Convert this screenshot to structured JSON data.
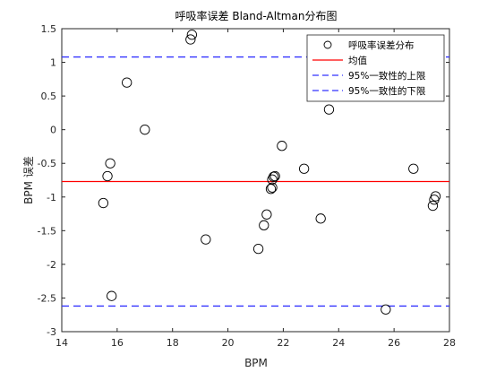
{
  "chart_data": {
    "type": "scatter",
    "title": "呼吸率误差 Bland-Altman分布图",
    "xlabel": "BPM",
    "ylabel": "BPM 误差",
    "xlim": [
      14,
      28
    ],
    "ylim": [
      -3,
      1.5
    ],
    "xticks": [
      14,
      16,
      18,
      20,
      22,
      24,
      26,
      28
    ],
    "yticks": [
      -3,
      -2.5,
      -2,
      -1.5,
      -1,
      -0.5,
      0,
      0.5,
      1,
      1.5
    ],
    "xtick_labels": [
      "14",
      "16",
      "18",
      "20",
      "22",
      "24",
      "26",
      "28"
    ],
    "ytick_labels": [
      "-3",
      "-2.5",
      "-2",
      "-1.5",
      "-1",
      "-0.5",
      "0",
      "0.5",
      "1",
      "1.5"
    ],
    "grid": false,
    "legend_position": "top-right",
    "series": [
      {
        "name": "呼吸率误差分布",
        "color": "#000000",
        "marker": "circle-open",
        "x": [
          18.7,
          18.65,
          16.35,
          17.0,
          15.75,
          15.65,
          15.5,
          15.8,
          19.2,
          21.1,
          21.3,
          21.4,
          21.55,
          21.6,
          21.6,
          21.65,
          21.7,
          21.95,
          22.75,
          23.35,
          23.65,
          25.7,
          26.7,
          27.4,
          27.45,
          27.5
        ],
        "y": [
          1.41,
          1.34,
          0.7,
          0.0,
          -0.5,
          -0.69,
          -1.09,
          -2.47,
          -1.63,
          -1.77,
          -1.42,
          -1.26,
          -0.88,
          -0.86,
          -0.74,
          -0.7,
          -0.69,
          -0.24,
          -0.58,
          -1.32,
          0.3,
          -2.67,
          -0.58,
          -1.13,
          -1.04,
          -0.99
        ]
      },
      {
        "name": "均值",
        "type": "hline",
        "value": -0.77,
        "color": "#ff0000",
        "style": "solid"
      },
      {
        "name": "95%一致性的上限",
        "type": "hline",
        "value": 1.08,
        "color": "#3333ff",
        "style": "dashed"
      },
      {
        "name": "95%一致性的下限",
        "type": "hline",
        "value": -2.62,
        "color": "#3333ff",
        "style": "dashed"
      }
    ]
  }
}
